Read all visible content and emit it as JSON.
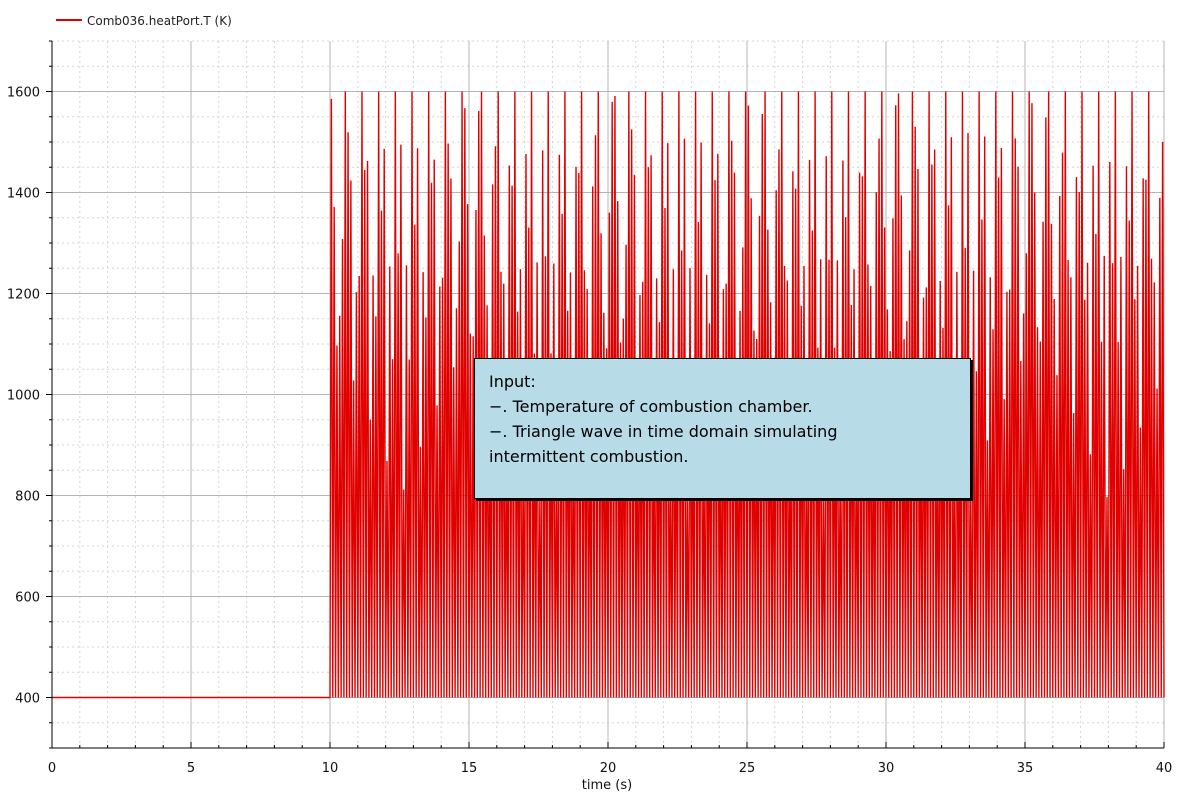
{
  "chart_data": {
    "type": "line",
    "xlabel": "time (s)",
    "ylabel": "",
    "xlim": [
      0,
      40
    ],
    "ylim": [
      300,
      1700
    ],
    "x_ticks": [
      0,
      5,
      10,
      15,
      20,
      25,
      30,
      35,
      40
    ],
    "y_ticks": [
      400,
      600,
      800,
      1000,
      1200,
      1400,
      1600
    ],
    "grid": true,
    "legend_position": "top-left",
    "series": [
      {
        "name": "Comb036.heatPort.T (K)",
        "color": "#e00000",
        "waveform": "triangle",
        "baseline_until": 10,
        "baseline_value": 400,
        "min": 400,
        "max": 1600,
        "period": 0.1,
        "start": 10,
        "end": 40
      }
    ],
    "annotations": [
      {
        "lines": [
          "Input:",
          "−. Temperature of combustion chamber.",
          "−. Triangle wave in time domain simulating",
          "intermittent combustion."
        ],
        "background": "#b7dce8"
      }
    ]
  }
}
